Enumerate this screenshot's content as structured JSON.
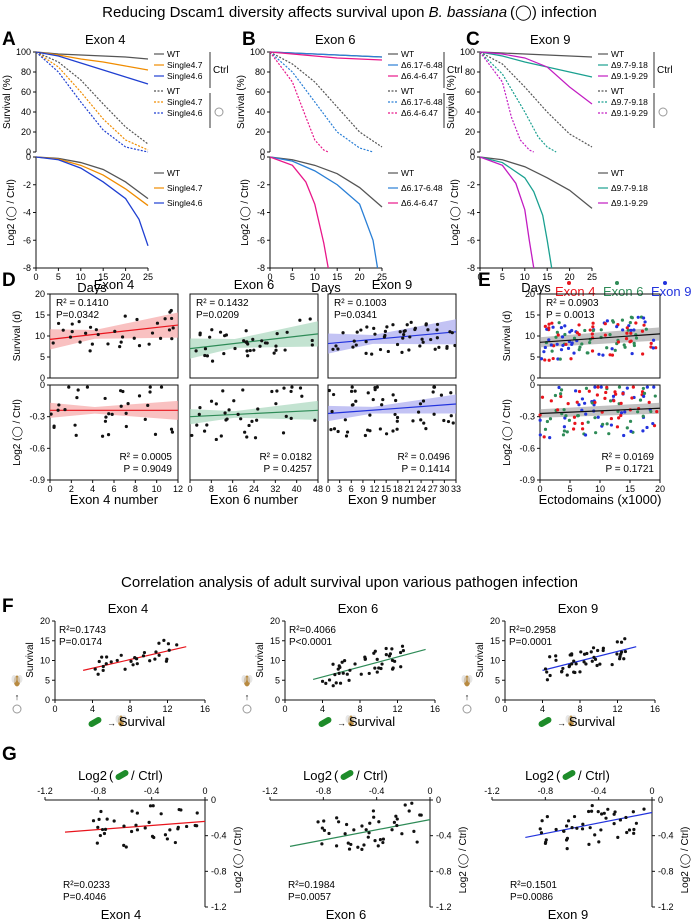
{
  "figure_title": "Reducing Dscam1 diversity affects survival upon B. bassiana (◯) infection",
  "title_parts": {
    "pre": "Reducing Dscam1 diversity affects survival upon ",
    "species": "B. bassiana",
    "post": " infection"
  },
  "section2_title": "Correlation analysis of adult survival upon various pathogen infection",
  "colors": {
    "wt": "#555555",
    "exon4_a": "#f08c00",
    "exon4_b": "#1f3fd1",
    "exon6_a": "#2a7fd6",
    "exon6_b": "#e8178a",
    "exon9_a": "#1aa090",
    "exon9_b": "#c21cc2",
    "red": "#e8141c",
    "green": "#2e8b57",
    "blue": "#2233dd"
  },
  "panel_labels": [
    "A",
    "B",
    "C",
    "D",
    "E",
    "F",
    "G"
  ],
  "common": {
    "days": "Days",
    "ctrl": "Ctrl",
    "survival_pct": "Survival (%)",
    "log2_infected": "Log2 (◯ / Ctrl)",
    "survival_d": "Survival (d)",
    "survival": "Survival",
    "log2_green": "Log2 ( / Ctrl)",
    "wt": "WT"
  },
  "chart_data": [
    {
      "panel": "A",
      "type": "line",
      "title": "Exon 4",
      "xlabel": "Days",
      "ylabel": "Survival (%)",
      "xlim": [
        0,
        25
      ],
      "ylim": [
        0,
        100
      ],
      "xticks": [
        "0",
        "5",
        "10",
        "15",
        "20",
        "25"
      ],
      "yticks": [
        "0",
        "20",
        "40",
        "60",
        "80",
        "100"
      ],
      "legend": [
        "WT",
        "Single4.7",
        "Single4.6",
        "WT",
        "Single4.7",
        "Single4.6"
      ],
      "series": [
        {
          "name": "WT Ctrl",
          "x": [
            0,
            5,
            10,
            15,
            20,
            25
          ],
          "values": [
            100,
            98,
            97,
            96,
            95,
            93
          ]
        },
        {
          "name": "Single4.7 Ctrl",
          "x": [
            0,
            5,
            10,
            15,
            20,
            25
          ],
          "values": [
            100,
            97,
            93,
            90,
            86,
            82
          ]
        },
        {
          "name": "Single4.6 Ctrl",
          "x": [
            0,
            5,
            10,
            15,
            20,
            25
          ],
          "values": [
            100,
            96,
            89,
            82,
            75,
            68
          ]
        },
        {
          "name": "WT infected",
          "x": [
            0,
            5,
            10,
            15,
            20,
            25
          ],
          "values": [
            100,
            90,
            72,
            48,
            25,
            8
          ]
        },
        {
          "name": "Single4.7 infected",
          "x": [
            0,
            5,
            10,
            15,
            20,
            25
          ],
          "values": [
            100,
            85,
            60,
            33,
            12,
            2
          ]
        },
        {
          "name": "Single4.6 infected",
          "x": [
            0,
            5,
            10,
            15,
            20,
            25
          ],
          "values": [
            100,
            80,
            50,
            22,
            5,
            0
          ]
        }
      ]
    },
    {
      "panel": "A-log",
      "type": "line",
      "xlabel": "Days",
      "ylabel": "Log2 (◯ / Ctrl)",
      "xlim": [
        0,
        25
      ],
      "ylim": [
        -8,
        0
      ],
      "xticks": [
        "0",
        "5",
        "10",
        "15",
        "20",
        "25"
      ],
      "yticks": [
        "0",
        "-2",
        "-4",
        "-6",
        "-8"
      ],
      "legend": [
        "WT",
        "Single4.7",
        "Single4.6"
      ],
      "series": [
        {
          "name": "WT",
          "x": [
            0,
            5,
            10,
            15,
            20,
            25
          ],
          "values": [
            0,
            -0.1,
            -0.4,
            -0.9,
            -1.8,
            -3.0
          ]
        },
        {
          "name": "Single4.7",
          "x": [
            0,
            5,
            10,
            15,
            20,
            25
          ],
          "values": [
            0,
            -0.15,
            -0.6,
            -1.3,
            -2.3,
            -3.5
          ]
        },
        {
          "name": "Single4.6",
          "x": [
            0,
            5,
            10,
            15,
            20,
            23,
            25
          ],
          "values": [
            0,
            -0.2,
            -0.8,
            -1.8,
            -3.0,
            -4.5,
            -6.4
          ]
        }
      ]
    },
    {
      "panel": "B",
      "type": "line",
      "title": "Exon 6",
      "xlabel": "Days",
      "ylabel": "Survival (%)",
      "xlim": [
        0,
        25
      ],
      "ylim": [
        0,
        100
      ],
      "xticks": [
        "0",
        "5",
        "10",
        "15",
        "20",
        "25"
      ],
      "yticks": [
        "0",
        "20",
        "40",
        "60",
        "80",
        "100"
      ],
      "legend": [
        "WT",
        "Δ6.17-6.48",
        "Δ6.4-6.47",
        "WT",
        "Δ6.17-6.48",
        "Δ6.4-6.47"
      ],
      "series": [
        {
          "name": "WT Ctrl",
          "x": [
            0,
            5,
            10,
            15,
            20,
            25
          ],
          "values": [
            100,
            99,
            98,
            97,
            96,
            95
          ]
        },
        {
          "name": "Δ6.17-6.48 Ctrl",
          "x": [
            0,
            5,
            10,
            15,
            20,
            25
          ],
          "values": [
            100,
            99,
            98,
            97,
            96,
            95
          ]
        },
        {
          "name": "Δ6.4-6.47 Ctrl",
          "x": [
            0,
            5,
            10,
            15,
            20,
            25
          ],
          "values": [
            100,
            98,
            96,
            94,
            93,
            92
          ]
        },
        {
          "name": "WT infected",
          "x": [
            0,
            5,
            10,
            15,
            20,
            25
          ],
          "values": [
            100,
            88,
            70,
            45,
            20,
            5
          ]
        },
        {
          "name": "Δ6.17-6.48 infected",
          "x": [
            0,
            5,
            10,
            15,
            20,
            23
          ],
          "values": [
            100,
            80,
            50,
            20,
            4,
            0
          ]
        },
        {
          "name": "Δ6.4-6.47 infected",
          "x": [
            0,
            5,
            8,
            10,
            12,
            13
          ],
          "values": [
            100,
            70,
            35,
            12,
            2,
            0
          ]
        }
      ]
    },
    {
      "panel": "B-log",
      "type": "line",
      "xlabel": "Days",
      "ylabel": "Log2 (◯ / Ctrl)",
      "xlim": [
        0,
        25
      ],
      "ylim": [
        -8,
        0
      ],
      "xticks": [
        "0",
        "5",
        "10",
        "15",
        "20",
        "25"
      ],
      "yticks": [
        "0",
        "-2",
        "-4",
        "-6",
        "-8"
      ],
      "legend": [
        "WT",
        "Δ6.17-6.48",
        "Δ6.4-6.47"
      ],
      "series": [
        {
          "name": "WT",
          "x": [
            0,
            5,
            10,
            15,
            20,
            25
          ],
          "values": [
            0,
            -0.2,
            -0.6,
            -1.2,
            -2.2,
            -3.6
          ]
        },
        {
          "name": "Δ6.17-6.48",
          "x": [
            0,
            5,
            10,
            15,
            20,
            23,
            24
          ],
          "values": [
            0,
            -0.3,
            -1.0,
            -2.0,
            -3.4,
            -6.0,
            -8.0
          ]
        },
        {
          "name": "Δ6.4-6.47",
          "x": [
            0,
            5,
            8,
            10,
            12,
            13
          ],
          "values": [
            0,
            -0.6,
            -1.8,
            -3.4,
            -6.2,
            -8.0
          ]
        }
      ]
    },
    {
      "panel": "C",
      "type": "line",
      "title": "Exon 9",
      "xlabel": "Days",
      "ylabel": "Survival (%)",
      "xlim": [
        0,
        25
      ],
      "ylim": [
        0,
        100
      ],
      "xticks": [
        "0",
        "5",
        "10",
        "15",
        "20",
        "25"
      ],
      "yticks": [
        "0",
        "20",
        "40",
        "60",
        "80",
        "100"
      ],
      "legend": [
        "WT",
        "Δ9.7-9.18",
        "Δ9.1-9.29",
        "WT",
        "Δ9.7-9.18",
        "Δ9.1-9.29"
      ],
      "series": [
        {
          "name": "WT Ctrl",
          "x": [
            0,
            5,
            10,
            15,
            20,
            25
          ],
          "values": [
            100,
            99,
            98,
            97,
            96,
            95
          ]
        },
        {
          "name": "Δ9.7-9.18 Ctrl",
          "x": [
            0,
            5,
            10,
            15,
            20,
            25
          ],
          "values": [
            100,
            96,
            90,
            85,
            80,
            75
          ]
        },
        {
          "name": "Δ9.1-9.29 Ctrl",
          "x": [
            0,
            5,
            10,
            15,
            20,
            25
          ],
          "values": [
            100,
            98,
            94,
            85,
            65,
            48
          ]
        },
        {
          "name": "WT infected",
          "x": [
            0,
            5,
            10,
            15,
            20,
            25
          ],
          "values": [
            100,
            88,
            65,
            40,
            18,
            5
          ]
        },
        {
          "name": "Δ9.7-9.18 infected",
          "x": [
            0,
            5,
            10,
            13,
            15,
            17
          ],
          "values": [
            100,
            78,
            40,
            15,
            5,
            0
          ]
        },
        {
          "name": "Δ9.1-9.29 infected",
          "x": [
            0,
            5,
            7,
            9,
            11,
            12
          ],
          "values": [
            100,
            70,
            35,
            12,
            2,
            0
          ]
        }
      ]
    },
    {
      "panel": "C-log",
      "type": "line",
      "xlabel": "Days",
      "ylabel": "Log2 (◯ / Ctrl)",
      "xlim": [
        0,
        25
      ],
      "ylim": [
        -8,
        0
      ],
      "xticks": [
        "0",
        "5",
        "10",
        "15",
        "20",
        "25"
      ],
      "yticks": [
        "0",
        "-2",
        "-4",
        "-6",
        "-8"
      ],
      "legend": [
        "WT",
        "Δ9.7-9.18",
        "Δ9.1-9.29"
      ],
      "series": [
        {
          "name": "WT",
          "x": [
            0,
            5,
            10,
            15,
            20,
            25
          ],
          "values": [
            0,
            -0.2,
            -0.7,
            -1.5,
            -2.4,
            -3.7
          ]
        },
        {
          "name": "Δ9.7-9.18",
          "x": [
            0,
            5,
            10,
            12,
            14,
            15,
            16
          ],
          "values": [
            0,
            -0.4,
            -1.5,
            -2.5,
            -4.2,
            -6.0,
            -8.0
          ]
        },
        {
          "name": "Δ9.1-9.29",
          "x": [
            0,
            5,
            8,
            10,
            11,
            12
          ],
          "values": [
            0,
            -0.6,
            -1.9,
            -3.8,
            -6.0,
            -8.0
          ]
        }
      ]
    },
    {
      "panel": "D",
      "type": "scatter",
      "title": "Exon 4",
      "xlabel": "Exon 4 number",
      "xlim": [
        0,
        12
      ],
      "xticks": [
        "0",
        "2",
        "4",
        "6",
        "8",
        "10",
        "12"
      ],
      "top": {
        "ylabel": "Survival (d)",
        "ylim": [
          0,
          20
        ],
        "yticks": [
          "0",
          "5",
          "10",
          "15",
          "20"
        ],
        "stats": [
          "R² = 0.1410",
          "P=0.0342"
        ],
        "fit": [
          9.2,
          12.6
        ]
      },
      "bottom": {
        "ylabel": "Log2 (◯ / Ctrl)",
        "ylim": [
          -0.9,
          0
        ],
        "yticks": [
          "0",
          "-0.3",
          "-0.6",
          "-0.9"
        ],
        "stats": [
          "R² = 0.0005",
          "P = 0.9049"
        ],
        "fit": [
          -0.24,
          -0.24
        ]
      }
    },
    {
      "panel": "D",
      "type": "scatter",
      "title": "Exon 6",
      "xlabel": "Exon 6 number",
      "xlim": [
        0,
        48
      ],
      "xticks": [
        "0",
        "8",
        "16",
        "24",
        "32",
        "40",
        "48"
      ],
      "top": {
        "stats": [
          "R² = 0.1432",
          "P=0.0209"
        ],
        "fit": [
          7.0,
          10.5
        ]
      },
      "bottom": {
        "stats": [
          "R² = 0.0182",
          "P = 0.4257"
        ],
        "fit": [
          -0.3,
          -0.24
        ]
      }
    },
    {
      "panel": "D",
      "type": "scatter",
      "title": "Exon 9",
      "xlabel": "Exon 9 number",
      "xlim": [
        0,
        33
      ],
      "xticks": [
        "0",
        "3",
        "6",
        "9",
        "12",
        "15",
        "18",
        "21",
        "24",
        "27",
        "30",
        "33"
      ],
      "top": {
        "stats": [
          "R² = 0.1003",
          "P=0.0341"
        ],
        "fit": [
          8.2,
          11.0
        ]
      },
      "bottom": {
        "stats": [
          "R² = 0.0496",
          "P = 0.1414"
        ],
        "fit": [
          -0.27,
          -0.18
        ]
      }
    },
    {
      "panel": "E",
      "type": "scatter",
      "xlabel": "Ectodomains (x1000)",
      "xlim": [
        0,
        20
      ],
      "xticks": [
        "0",
        "5",
        "10",
        "15",
        "20"
      ],
      "legend": [
        "Exon 4",
        "Exon 6",
        "Exon 9"
      ],
      "top": {
        "ylabel": "Survival (d)",
        "ylim": [
          0,
          20
        ],
        "stats": [
          "R² = 0.0903",
          "P = 0.0013"
        ],
        "fit": [
          8.5,
          10.5
        ]
      },
      "bottom": {
        "ylabel": "Log2 (◯ / Ctrl)",
        "ylim": [
          -0.9,
          0
        ],
        "stats": [
          "R² = 0.0169",
          "P = 0.1721"
        ],
        "fit": [
          -0.27,
          -0.22
        ]
      }
    },
    {
      "panel": "F",
      "type": "scatter",
      "title": "Exon 4",
      "xlabel": "Survival",
      "ylabel": "Survival",
      "xlim": [
        0,
        16
      ],
      "ylim": [
        0,
        20
      ],
      "xticks": [
        "0",
        "4",
        "8",
        "12",
        "16"
      ],
      "yticks": [
        "0",
        "5",
        "10",
        "15",
        "20"
      ],
      "stats": [
        "R²=0.1743",
        "P=0.0174"
      ],
      "fit": [
        [
          3,
          7.5
        ],
        [
          14,
          13.5
        ]
      ]
    },
    {
      "panel": "F",
      "type": "scatter",
      "title": "Exon 6",
      "xlabel": "Survival",
      "ylabel": "Survival",
      "xlim": [
        0,
        16
      ],
      "ylim": [
        0,
        20
      ],
      "xticks": [
        "0",
        "4",
        "8",
        "12",
        "16"
      ],
      "yticks": [
        "0",
        "5",
        "10",
        "15",
        "20"
      ],
      "stats": [
        "R²=0.4066",
        "P<0.0001"
      ],
      "fit": [
        [
          3,
          5.2
        ],
        [
          15,
          12.8
        ]
      ]
    },
    {
      "panel": "F",
      "type": "scatter",
      "title": "Exon 9",
      "xlabel": "Survival",
      "ylabel": "Survival",
      "xlim": [
        0,
        16
      ],
      "ylim": [
        0,
        20
      ],
      "xticks": [
        "0",
        "4",
        "8",
        "12",
        "16"
      ],
      "yticks": [
        "0",
        "5",
        "10",
        "15",
        "20"
      ],
      "stats": [
        "R²=0.2958",
        "P=0.0001"
      ],
      "fit": [
        [
          4,
          7.5
        ],
        [
          14,
          13.5
        ]
      ]
    },
    {
      "panel": "G",
      "type": "scatter",
      "title": "Exon 4",
      "xlabel": "Log2 ( / Ctrl)",
      "ylabel": "Log2 (◯ / Ctrl)",
      "xlim": [
        -1.2,
        0
      ],
      "ylim": [
        -1.2,
        0
      ],
      "xticks": [
        "-1.2",
        "-0.8",
        "-0.4",
        "0"
      ],
      "yticks": [
        "0",
        "-0.4",
        "-0.8",
        "-1.2"
      ],
      "stats": [
        "R²=0.0233",
        "P=0.4046"
      ],
      "fit": [
        [
          -1.05,
          -0.36
        ],
        [
          0,
          -0.24
        ]
      ]
    },
    {
      "panel": "G",
      "type": "scatter",
      "title": "Exon 6",
      "xlabel": "Log2 ( / Ctrl)",
      "ylabel": "Log2 (◯ / Ctrl)",
      "xlim": [
        -1.2,
        0
      ],
      "ylim": [
        -1.2,
        0
      ],
      "xticks": [
        "-1.2",
        "-0.8",
        "-0.4",
        "0"
      ],
      "yticks": [
        "0",
        "-0.4",
        "-0.8",
        "-1.2"
      ],
      "stats": [
        "R²=0.1984",
        "P=0.0057"
      ],
      "fit": [
        [
          -1.05,
          -0.52
        ],
        [
          0,
          -0.22
        ]
      ]
    },
    {
      "panel": "G",
      "type": "scatter",
      "title": "Exon 9",
      "xlabel": "Log2 ( / Ctrl)",
      "ylabel": "Log2 (◯ / Ctrl)",
      "xlim": [
        -1.2,
        0
      ],
      "ylim": [
        -1.2,
        0
      ],
      "xticks": [
        "-1.2",
        "-0.8",
        "-0.4",
        "0"
      ],
      "yticks": [
        "0",
        "-0.4",
        "-0.8",
        "-1.2"
      ],
      "stats": [
        "R²=0.1501",
        "P=0.0086"
      ],
      "fit": [
        [
          -0.95,
          -0.42
        ],
        [
          0,
          -0.14
        ]
      ]
    }
  ]
}
